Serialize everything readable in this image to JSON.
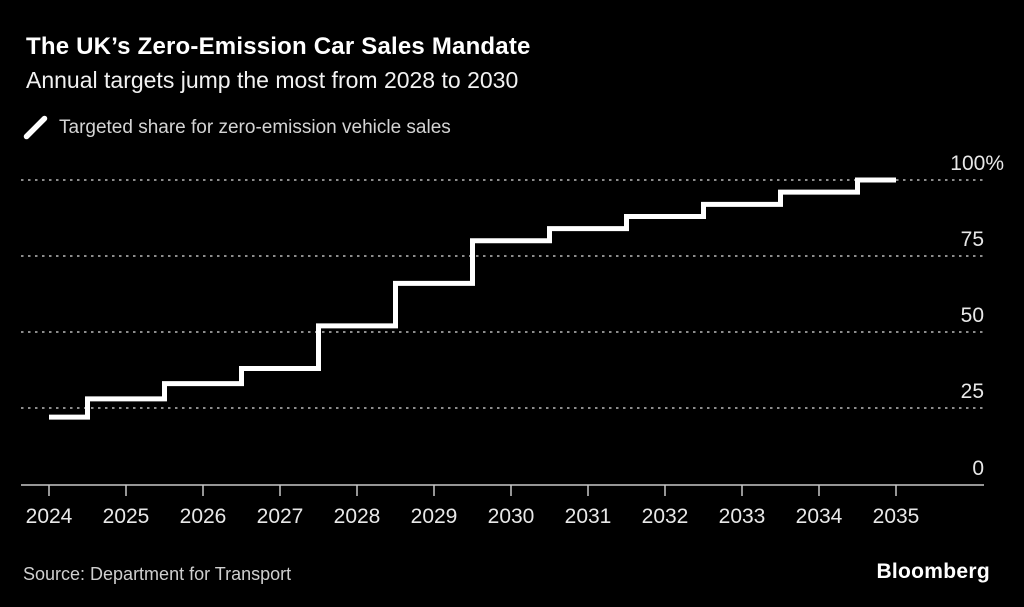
{
  "header": {
    "title": "The UK’s Zero-Emission Car Sales Mandate",
    "subtitle": "Annual targets jump the most from 2028 to 2030"
  },
  "legend": {
    "marker": "diagonal-line",
    "label": "Targeted share for zero-emission vehicle sales",
    "color": "#ffffff"
  },
  "chart_data": {
    "type": "line",
    "subtype": "step",
    "title": "The UK’s Zero-Emission Car Sales Mandate",
    "subtitle": "Annual targets jump the most from 2028 to 2030",
    "series_name": "Targeted share for zero-emission vehicle sales",
    "x": [
      2024,
      2025,
      2026,
      2027,
      2028,
      2029,
      2030,
      2031,
      2032,
      2033,
      2034,
      2035
    ],
    "values": [
      22,
      28,
      33,
      38,
      52,
      66,
      80,
      84,
      88,
      92,
      96,
      100
    ],
    "unit": "%",
    "ylim": [
      0,
      100
    ],
    "ytick_values": [
      0,
      25,
      50,
      75,
      100
    ],
    "ytick_labels": [
      "0",
      "25",
      "50",
      "75",
      "100%"
    ],
    "grid": "horizontal-dotted",
    "legend_position": "top-left",
    "y_axis_side": "right",
    "style": {
      "background": "#000000",
      "line_color": "#ffffff",
      "grid_color": "#8c8c8c",
      "axis_color": "#c8c8c8",
      "label_color": "#e8e8e8"
    }
  },
  "footer": {
    "source": "Source: Department for Transport",
    "brand": "Bloomberg"
  }
}
